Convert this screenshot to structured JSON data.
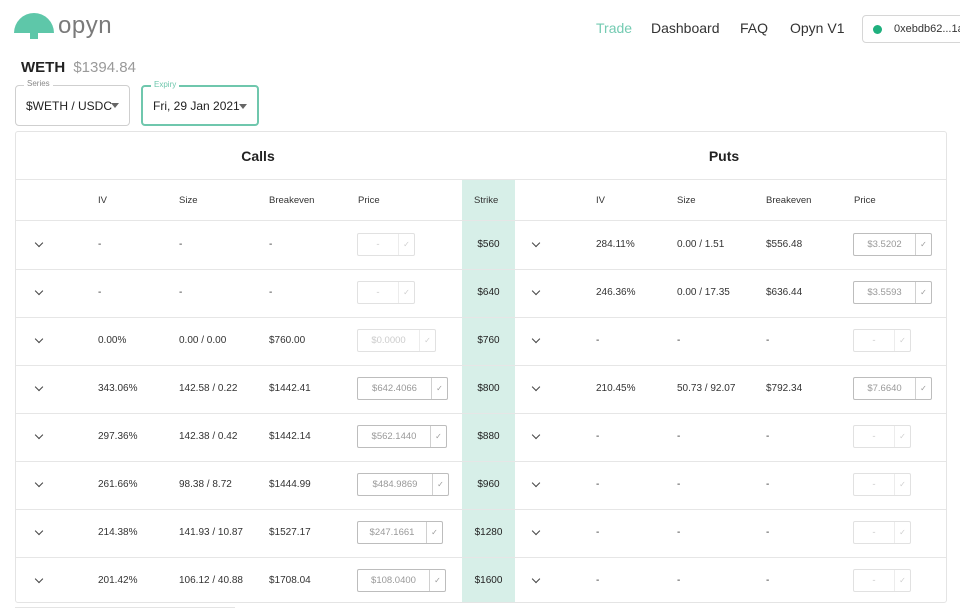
{
  "brand": {
    "name": "opyn"
  },
  "nav": {
    "trade": "Trade",
    "dashboard": "Dashboard",
    "faq": "FAQ",
    "v1": "Opyn V1"
  },
  "wallet": {
    "address": "0xebdb62...1a"
  },
  "asset": {
    "symbol": "WETH",
    "price": "$1394.84"
  },
  "series": {
    "label": "Series",
    "value": "$WETH / USDC"
  },
  "expiry": {
    "label": "Expiry",
    "value": "Fri, 29 Jan 2021"
  },
  "table": {
    "calls_title": "Calls",
    "puts_title": "Puts",
    "headers": {
      "iv": "IV",
      "size": "Size",
      "breakeven": "Breakeven",
      "price": "Price",
      "strike": "Strike"
    },
    "rows": [
      {
        "strike": "$560",
        "call": {
          "iv": "-",
          "size": "-",
          "breakeven": "-",
          "price": "-",
          "enabled": false
        },
        "put": {
          "iv": "284.11%",
          "size": "0.00 / 1.51",
          "breakeven": "$556.48",
          "price": "$3.5202",
          "enabled": true
        }
      },
      {
        "strike": "$640",
        "call": {
          "iv": "-",
          "size": "-",
          "breakeven": "-",
          "price": "-",
          "enabled": false
        },
        "put": {
          "iv": "246.36%",
          "size": "0.00 / 17.35",
          "breakeven": "$636.44",
          "price": "$3.5593",
          "enabled": true
        }
      },
      {
        "strike": "$760",
        "call": {
          "iv": "0.00%",
          "size": "0.00 / 0.00",
          "breakeven": "$760.00",
          "price": "$0.0000",
          "enabled": false
        },
        "put": {
          "iv": "-",
          "size": "-",
          "breakeven": "-",
          "price": "-",
          "enabled": false
        }
      },
      {
        "strike": "$800",
        "call": {
          "iv": "343.06%",
          "size": "142.58 / 0.22",
          "breakeven": "$1442.41",
          "price": "$642.4066",
          "enabled": true
        },
        "put": {
          "iv": "210.45%",
          "size": "50.73 / 92.07",
          "breakeven": "$792.34",
          "price": "$7.6640",
          "enabled": true
        }
      },
      {
        "strike": "$880",
        "call": {
          "iv": "297.36%",
          "size": "142.38 / 0.42",
          "breakeven": "$1442.14",
          "price": "$562.1440",
          "enabled": true
        },
        "put": {
          "iv": "-",
          "size": "-",
          "breakeven": "-",
          "price": "-",
          "enabled": false
        }
      },
      {
        "strike": "$960",
        "call": {
          "iv": "261.66%",
          "size": "98.38 / 8.72",
          "breakeven": "$1444.99",
          "price": "$484.9869",
          "enabled": true
        },
        "put": {
          "iv": "-",
          "size": "-",
          "breakeven": "-",
          "price": "-",
          "enabled": false
        }
      },
      {
        "strike": "$1280",
        "call": {
          "iv": "214.38%",
          "size": "141.93 / 10.87",
          "breakeven": "$1527.17",
          "price": "$247.1661",
          "enabled": true
        },
        "put": {
          "iv": "-",
          "size": "-",
          "breakeven": "-",
          "price": "-",
          "enabled": false
        }
      },
      {
        "strike": "$1600",
        "call": {
          "iv": "201.42%",
          "size": "106.12 / 40.88",
          "breakeven": "$1708.04",
          "price": "$108.0400",
          "enabled": true
        },
        "put": {
          "iv": "-",
          "size": "-",
          "breakeven": "-",
          "price": "-",
          "enabled": false
        }
      }
    ]
  },
  "icons": {
    "expand": "chevron-down-icon",
    "confirm": "check-icon",
    "status": "status-dot-icon"
  },
  "colors": {
    "accent": "#5ec7a9",
    "strike_bg": "#d7efe8",
    "status_green": "#1fb07e"
  }
}
